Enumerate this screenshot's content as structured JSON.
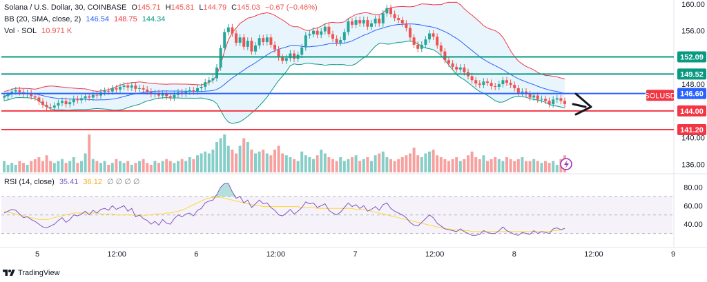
{
  "legend": {
    "title": "Solana / U.S. Dollar, 30, COINBASE",
    "o_label": "O",
    "o": "145.71",
    "h_label": "H",
    "h": "145.81",
    "l_label": "L",
    "l": "144.79",
    "c_label": "C",
    "c": "145.03",
    "change": "−0.67 (−0.46%)",
    "bb_label": "BB (20, SMA, close, 2)",
    "bb_basis": "146.54",
    "bb_upper": "148.75",
    "bb_lower": "144.34",
    "vol_label": "Vol · SOL",
    "vol": "10.971 K",
    "rsi_label": "RSI (14, close)",
    "rsi": "35.41",
    "rsi_ma": "36.12",
    "rsi_extra": "∅ ∅ ∅ ∅"
  },
  "branding": "TradingView",
  "colors": {
    "up": "#26a69a",
    "down": "#ef5350",
    "bb_basis": "#2962ff",
    "bb_upper": "#f23645",
    "bb_lower": "#089981",
    "bb_fill": "#e3f2fd",
    "rsi_line": "#7e57c2",
    "rsi_ma": "#fdd835",
    "level_green": "#089981",
    "level_red": "#f23645",
    "level_blue": "#2962ff"
  },
  "chart_data": {
    "type": "candlestick",
    "symbol_tag": "SOLUSD",
    "time_ticks": [
      "5",
      "12:00",
      "6",
      "12:00",
      "7",
      "12:00",
      "8",
      "12:00",
      "9"
    ],
    "price_axis": {
      "ylim": [
        134.8,
        160.6
      ],
      "ticks": [
        160.0,
        156.0,
        148.0,
        140.0,
        136.0
      ]
    },
    "levels": [
      {
        "price": 152.09,
        "label": "152.09",
        "color": "green"
      },
      {
        "price": 149.52,
        "label": "149.52",
        "color": "green"
      },
      {
        "price": 146.6,
        "label": "146.60",
        "color": "blue"
      },
      {
        "price": 144.0,
        "label": "144.00",
        "color": "red"
      },
      {
        "price": 141.2,
        "label": "141.20",
        "color": "red"
      }
    ],
    "last_price": 145.03,
    "close_series": [
      146.2,
      146.5,
      146.9,
      147.1,
      146.8,
      146.5,
      146.7,
      146.2,
      146.0,
      145.4,
      144.9,
      144.6,
      144.5,
      144.8,
      145.2,
      145.5,
      145.0,
      145.3,
      145.8,
      145.6,
      145.9,
      146.2,
      146.0,
      146.4,
      146.3,
      146.8,
      147.0,
      146.9,
      147.4,
      147.2,
      147.6,
      147.8,
      147.5,
      147.8,
      147.3,
      147.4,
      147.2,
      146.9,
      146.5,
      146.7,
      146.3,
      146.6,
      146.2,
      146.0,
      146.4,
      146.8,
      146.6,
      146.9,
      147.1,
      146.9,
      147.4,
      147.6,
      148.3,
      148.6,
      148.9,
      150.5,
      153.4,
      155.8,
      156.5,
      155.6,
      154.2,
      155.0,
      153.6,
      154.5,
      152.9,
      153.8,
      154.9,
      154.3,
      155.0,
      153.9,
      153.2,
      152.0,
      151.5,
      151.9,
      152.6,
      151.8,
      152.4,
      153.5,
      155.3,
      155.5,
      156.0,
      155.4,
      155.9,
      156.6,
      155.5,
      154.8,
      154.2,
      154.6,
      155.8,
      157.4,
      156.9,
      157.6,
      157.1,
      157.6,
      156.6,
      157.1,
      157.8,
      157.1,
      158.6,
      159.4,
      158.5,
      157.9,
      157.6,
      157.1,
      156.4,
      155.0,
      153.9,
      153.3,
      153.9,
      154.7,
      155.6,
      155.1,
      153.8,
      152.9,
      151.6,
      151.1,
      150.6,
      150.2,
      150.5,
      149.8,
      149.2,
      148.6,
      148.1,
      147.9,
      148.4,
      148.2,
      147.7,
      147.6,
      148.0,
      148.6,
      148.2,
      147.9,
      147.4,
      146.7,
      146.9,
      146.5,
      146.0,
      146.3,
      145.7,
      145.8,
      145.5,
      145.0,
      145.7,
      145.9,
      145.5,
      145.03
    ],
    "volume_series": [
      0.3,
      0.2,
      0.25,
      0.2,
      0.3,
      0.25,
      0.2,
      0.3,
      0.35,
      0.4,
      0.3,
      0.45,
      0.3,
      0.25,
      0.3,
      0.35,
      0.25,
      0.3,
      0.4,
      0.25,
      0.3,
      0.5,
      1.0,
      0.35,
      0.3,
      0.25,
      0.3,
      0.2,
      0.25,
      0.35,
      0.3,
      0.25,
      0.3,
      0.2,
      0.25,
      0.3,
      0.35,
      0.25,
      0.2,
      0.3,
      0.25,
      0.3,
      0.35,
      0.3,
      0.25,
      0.3,
      0.35,
      0.3,
      0.4,
      0.35,
      0.45,
      0.5,
      0.55,
      0.5,
      0.6,
      0.8,
      0.9,
      1.0,
      0.7,
      0.6,
      0.5,
      0.7,
      0.9,
      0.8,
      0.6,
      0.5,
      0.55,
      0.6,
      0.5,
      0.45,
      0.6,
      0.7,
      0.5,
      0.45,
      0.4,
      0.35,
      0.3,
      0.55,
      0.45,
      0.4,
      0.35,
      0.45,
      0.6,
      0.5,
      0.4,
      0.35,
      0.3,
      0.4,
      0.3,
      0.35,
      0.4,
      0.45,
      0.3,
      0.35,
      0.4,
      0.3,
      0.45,
      0.5,
      0.55,
      0.4,
      0.35,
      0.3,
      0.35,
      0.4,
      0.45,
      0.5,
      0.65,
      0.45,
      0.4,
      0.5,
      0.55,
      0.6,
      0.45,
      0.4,
      0.35,
      0.3,
      0.35,
      0.4,
      0.3,
      0.35,
      0.45,
      0.55,
      0.4,
      0.35,
      0.45,
      0.3,
      0.35,
      0.4,
      0.35,
      0.3,
      0.4,
      0.35,
      0.3,
      0.35,
      0.4,
      0.3,
      0.3,
      0.35,
      0.3,
      0.25,
      0.3,
      0.25,
      0.3,
      0.2,
      0.35,
      0.45
    ],
    "volume_axis": {
      "ticks": [
        140.0,
        136.0
      ]
    },
    "rsi_series": [
      52,
      54,
      56,
      55,
      51,
      47,
      48,
      45,
      43,
      40,
      37,
      36,
      38,
      40,
      44,
      47,
      42,
      45,
      50,
      49,
      51,
      54,
      50,
      55,
      52,
      56,
      57,
      55,
      60,
      56,
      58,
      60,
      54,
      57,
      48,
      50,
      46,
      44,
      40,
      43,
      39,
      45,
      41,
      40,
      46,
      50,
      48,
      51,
      52,
      49,
      55,
      57,
      63,
      65,
      66,
      72,
      80,
      84,
      84,
      75,
      68,
      70,
      63,
      66,
      58,
      62,
      66,
      62,
      63,
      58,
      55,
      50,
      49,
      52,
      56,
      51,
      54,
      58,
      64,
      62,
      63,
      58,
      60,
      62,
      55,
      52,
      50,
      53,
      58,
      63,
      59,
      61,
      57,
      60,
      54,
      56,
      59,
      55,
      61,
      63,
      57,
      54,
      52,
      50,
      47,
      42,
      39,
      38,
      42,
      46,
      50,
      47,
      41,
      38,
      35,
      34,
      33,
      32,
      35,
      32,
      30,
      28,
      28,
      29,
      33,
      31,
      30,
      30,
      33,
      37,
      33,
      31,
      29,
      28,
      31,
      30,
      29,
      33,
      30,
      32,
      31,
      30,
      35,
      36,
      34,
      35.41
    ],
    "rsi_ma_series": [
      54,
      53,
      52,
      51,
      50,
      49,
      48,
      47,
      46,
      45,
      45,
      45,
      46,
      47,
      48,
      49,
      50,
      51,
      52,
      52,
      52,
      52,
      52,
      52,
      52,
      51,
      51,
      51,
      51,
      50,
      50,
      50,
      50,
      50,
      49,
      49,
      49,
      50,
      50,
      51,
      51,
      51,
      52,
      52,
      53,
      54,
      55,
      57,
      59,
      61,
      63,
      65,
      67,
      68,
      69,
      69,
      69,
      68,
      67,
      66,
      65,
      64,
      63,
      62,
      61,
      60,
      60,
      59,
      59,
      59,
      59,
      59,
      59,
      59,
      59,
      59,
      59,
      58,
      58,
      58,
      58,
      57,
      57,
      57,
      57,
      57,
      57,
      57,
      57,
      57,
      57,
      56,
      56,
      56,
      55,
      54,
      53,
      52,
      51,
      50,
      49,
      48,
      47,
      46,
      45,
      44,
      43,
      42,
      41,
      40,
      39,
      38,
      37,
      36,
      35,
      35,
      34,
      34,
      33,
      33,
      33,
      32,
      32,
      32,
      32,
      32,
      32,
      32,
      32,
      32,
      32,
      32,
      32,
      32,
      32,
      32,
      32,
      32,
      32,
      32,
      32,
      32,
      33,
      33,
      34,
      36.12
    ],
    "rsi_axis": {
      "ylim": [
        20,
        90
      ],
      "ticks": [
        80.0,
        60.0,
        40.0
      ],
      "upper_band": 70,
      "mid": 50,
      "lower_band": 30
    }
  }
}
